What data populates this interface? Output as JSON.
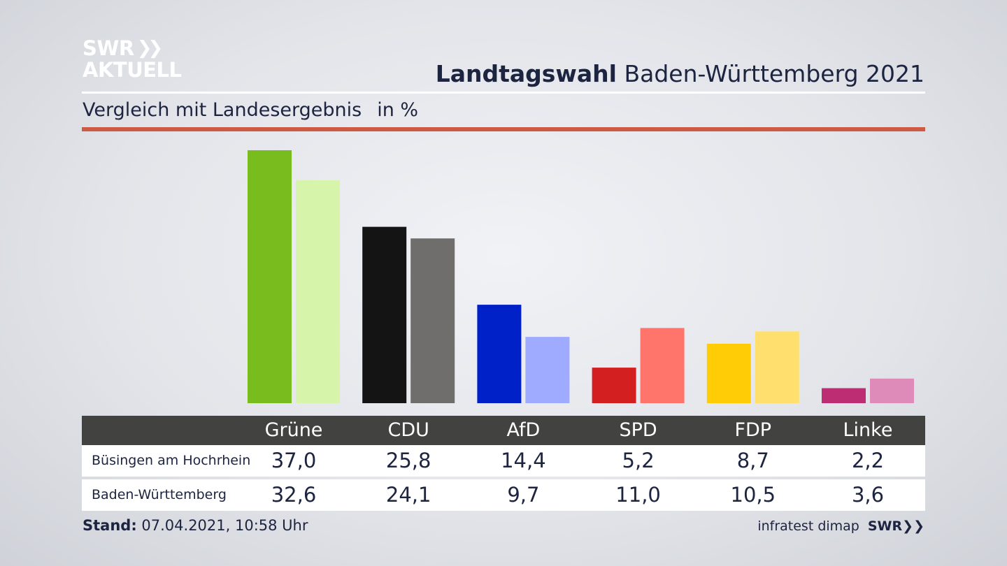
{
  "header": {
    "logo_line1": "SWR",
    "logo_line2": "AKTUELL",
    "title_bold": "Landtagswahl",
    "title_rest": " Baden-Württemberg 2021",
    "subtitle": "Vergleich mit Landesergebnis",
    "unit": "in %"
  },
  "chart_data": {
    "type": "bar",
    "categories": [
      "Grüne",
      "CDU",
      "AfD",
      "SPD",
      "FDP",
      "Linke"
    ],
    "series": [
      {
        "name": "Büsingen am Hochrhein",
        "values": [
          37.0,
          25.8,
          14.4,
          5.2,
          8.7,
          2.2
        ],
        "labels": [
          "37,0",
          "25,8",
          "14,4",
          "5,2",
          "8,7",
          "2,2"
        ]
      },
      {
        "name": "Baden-Württemberg",
        "values": [
          32.6,
          24.1,
          9.7,
          11.0,
          10.5,
          3.6
        ],
        "labels": [
          "32,6",
          "24,1",
          "9,7",
          "11,0",
          "10,5",
          "3,6"
        ]
      }
    ],
    "colors": {
      "primary": [
        "#78bc1e",
        "#141414",
        "#0021c8",
        "#d41f20",
        "#ffcc05",
        "#bd2d73"
      ],
      "secondary": [
        "#d6f5aa",
        "#706e6d",
        "#9eabff",
        "#ff746b",
        "#ffe06e",
        "#df8bba"
      ]
    },
    "ylim": [
      0,
      37
    ]
  },
  "footer": {
    "stand_label": "Stand:",
    "stand_value": " 07.04.2021, 10:58 Uhr",
    "source": "infratest dimap",
    "source_logo": "SWR"
  }
}
